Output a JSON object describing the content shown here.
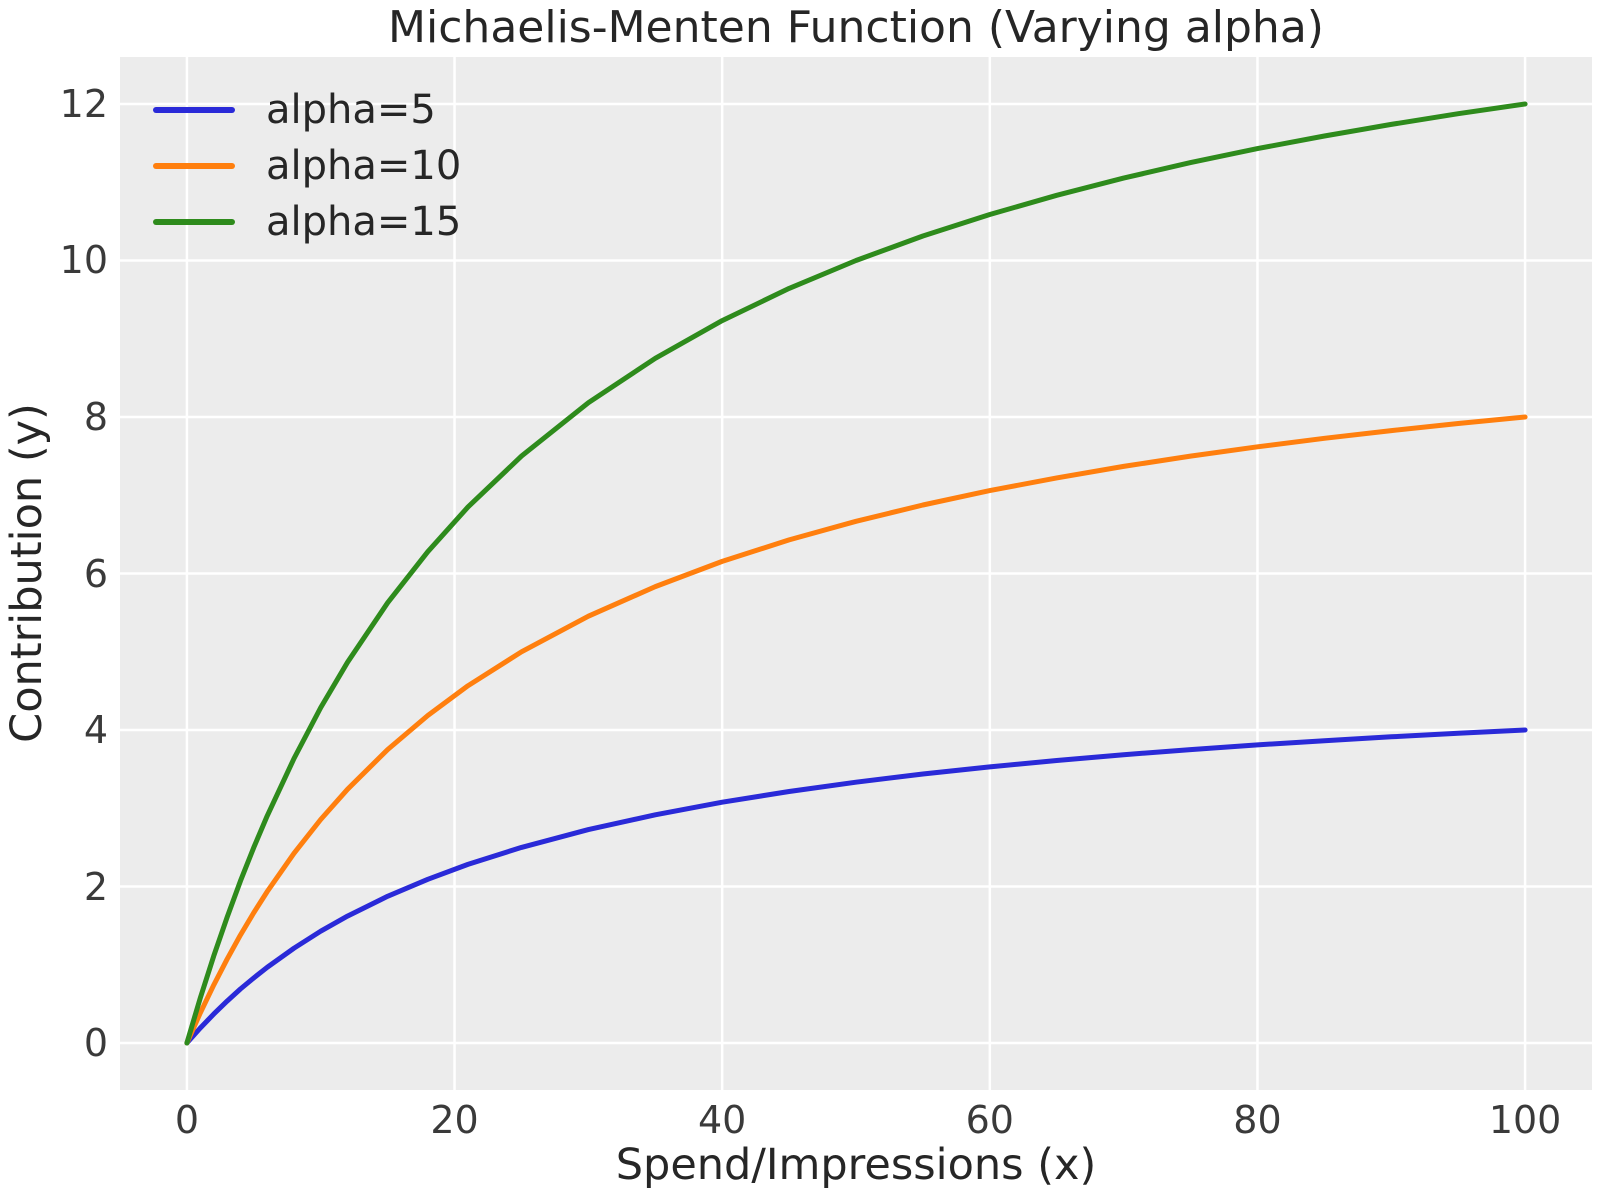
{
  "chart_data": {
    "type": "line",
    "title": "Michaelis-Menten Function (Varying alpha)",
    "xlabel": "Spend/Impressions (x)",
    "ylabel": "Contribution (y)",
    "xlim": [
      -5,
      105
    ],
    "ylim": [
      -0.6,
      12.6
    ],
    "xticks": [
      0,
      20,
      40,
      60,
      80,
      100
    ],
    "yticks": [
      0,
      2,
      4,
      6,
      8,
      10,
      12
    ],
    "grid": true,
    "legend_position": "upper-left",
    "plot_background_color": "#ececec",
    "grid_color": "#ffffff",
    "figure_background_color": "#ffffff",
    "text_color": "#262626",
    "tick_color": "#3a3a3a",
    "x": [
      0,
      1,
      2,
      3,
      4,
      5,
      6,
      8,
      10,
      12,
      15,
      18,
      21,
      25,
      30,
      35,
      40,
      45,
      50,
      55,
      60,
      65,
      70,
      75,
      80,
      85,
      90,
      95,
      100
    ],
    "series": [
      {
        "label": "alpha=5",
        "color": "#2a2ad8",
        "values": [
          0,
          0.192,
          0.37,
          0.536,
          0.69,
          0.833,
          0.968,
          1.212,
          1.429,
          1.622,
          1.875,
          2.093,
          2.283,
          2.5,
          2.727,
          2.917,
          3.077,
          3.214,
          3.333,
          3.438,
          3.529,
          3.611,
          3.684,
          3.75,
          3.81,
          3.864,
          3.913,
          3.958,
          4
        ]
      },
      {
        "label": "alpha=10",
        "color": "#ff7f0e",
        "values": [
          0,
          0.385,
          0.741,
          1.071,
          1.379,
          1.667,
          1.935,
          2.424,
          2.857,
          3.243,
          3.75,
          4.186,
          4.565,
          5,
          5.455,
          5.833,
          6.154,
          6.429,
          6.667,
          6.875,
          7.059,
          7.222,
          7.368,
          7.5,
          7.619,
          7.727,
          7.826,
          7.917,
          8
        ]
      },
      {
        "label": "alpha=15",
        "color": "#2e8b1c",
        "values": [
          0,
          0.577,
          1.111,
          1.607,
          2.069,
          2.5,
          2.903,
          3.636,
          4.286,
          4.865,
          5.625,
          6.279,
          6.848,
          7.5,
          8.182,
          8.75,
          9.231,
          9.643,
          10,
          10.313,
          10.588,
          10.833,
          11.053,
          11.25,
          11.429,
          11.591,
          11.739,
          11.875,
          12
        ]
      }
    ]
  }
}
